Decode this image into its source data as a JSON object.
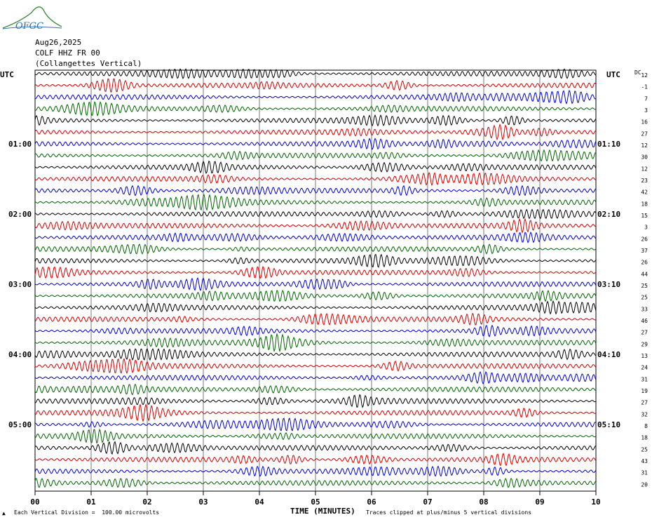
{
  "logo": {
    "text": "OFGC"
  },
  "header": {
    "date": "Aug26,2025",
    "station": "COLF HHZ FR 00",
    "location": "(Collangettes Vertical)"
  },
  "utc_left": "UTC",
  "utc_right": "UTC",
  "dc_label": "DC",
  "footer": {
    "scale": "Each Vertical Division =  100.00 microvolts",
    "x_title": "TIME (MINUTES)",
    "clip_note": "Traces clipped at plus/minus 5 vertical divisions",
    "corner": "▲"
  },
  "chart_data": {
    "type": "line",
    "title": "COLF HHZ FR 00",
    "xlabel": "TIME (MINUTES)",
    "ylabel": "UTC",
    "x_ticks": [
      "00",
      "01",
      "02",
      "03",
      "04",
      "05",
      "06",
      "07",
      "08",
      "09",
      "10"
    ],
    "xlim": [
      0,
      10
    ],
    "left_time_labels": [
      {
        "row": 6,
        "text": "01:00"
      },
      {
        "row": 12,
        "text": "02:00"
      },
      {
        "row": 18,
        "text": "03:00"
      },
      {
        "row": 24,
        "text": "04:00"
      },
      {
        "row": 30,
        "text": "05:00"
      }
    ],
    "right_time_labels": [
      {
        "row": 6,
        "text": "01:10"
      },
      {
        "row": 12,
        "text": "02:10"
      },
      {
        "row": 18,
        "text": "03:10"
      },
      {
        "row": 24,
        "text": "04:10"
      },
      {
        "row": 30,
        "text": "05:10"
      }
    ],
    "dc_offsets": [
      12,
      -1,
      7,
      3,
      16,
      27,
      12,
      30,
      12,
      23,
      42,
      18,
      15,
      3,
      26,
      37,
      26,
      44,
      25,
      25,
      33,
      46,
      27,
      29,
      13,
      24,
      31,
      19,
      27,
      32,
      8,
      18,
      25,
      43,
      31,
      20
    ],
    "trace_colors": [
      "#000000",
      "#d40000",
      "#0000c8",
      "#006400"
    ],
    "trace_count": 36
  }
}
